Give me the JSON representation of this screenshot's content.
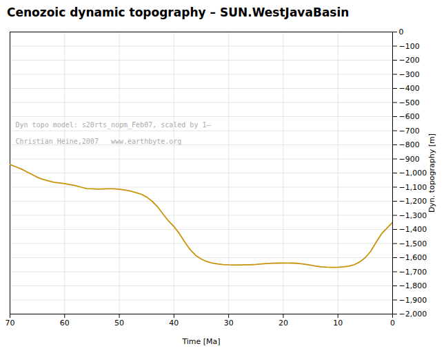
{
  "chart_data": {
    "type": "line",
    "title": "Cenozoic dynamic topography – SUN.WestJavaBasin",
    "xlabel": "Time [Ma]",
    "ylabel": "Dyn. topography [m]",
    "annotations": [
      "Dyn topo model: s20rts_nopm_Feb07, scaled by 1—",
      "Christian Heine,2007   www.earthbyte.org"
    ],
    "color": "#c8920a",
    "xlim": [
      70,
      0
    ],
    "ylim": [
      -2000,
      0
    ],
    "xticks": [
      70,
      60,
      50,
      40,
      30,
      20,
      10,
      0
    ],
    "yticks": [
      0,
      -100,
      -200,
      -300,
      -400,
      -500,
      -600,
      -700,
      -800,
      -900,
      -1000,
      -1100,
      -1200,
      -1300,
      -1400,
      -1500,
      -1600,
      -1700,
      -1800,
      -1900,
      -2000
    ],
    "grid": true,
    "x": [
      70,
      69,
      68,
      67,
      66,
      65,
      64,
      63,
      62,
      61,
      60,
      59,
      58,
      57,
      56,
      55,
      54,
      53,
      52,
      51,
      50,
      49,
      48,
      47,
      46,
      45,
      44,
      43,
      42,
      41,
      40,
      39,
      38,
      37,
      36,
      35,
      34,
      33,
      32,
      31,
      30,
      29,
      28,
      27,
      26,
      25,
      24,
      23,
      22,
      21,
      20,
      19,
      18,
      17,
      16,
      15,
      14,
      13,
      12,
      11,
      10,
      9,
      8,
      7,
      6,
      5,
      4,
      3,
      2,
      1,
      0
    ],
    "values": [
      -940,
      -955,
      -970,
      -990,
      -1010,
      -1030,
      -1045,
      -1055,
      -1065,
      -1070,
      -1075,
      -1082,
      -1090,
      -1100,
      -1110,
      -1112,
      -1114,
      -1113,
      -1112,
      -1112,
      -1115,
      -1120,
      -1128,
      -1138,
      -1150,
      -1170,
      -1200,
      -1240,
      -1290,
      -1340,
      -1380,
      -1430,
      -1490,
      -1545,
      -1585,
      -1610,
      -1628,
      -1638,
      -1645,
      -1649,
      -1651,
      -1652,
      -1652,
      -1651,
      -1650,
      -1648,
      -1645,
      -1642,
      -1640,
      -1639,
      -1638,
      -1638,
      -1639,
      -1642,
      -1647,
      -1653,
      -1660,
      -1665,
      -1668,
      -1669,
      -1668,
      -1665,
      -1660,
      -1650,
      -1630,
      -1600,
      -1555,
      -1490,
      -1430,
      -1390,
      -1350
    ]
  }
}
